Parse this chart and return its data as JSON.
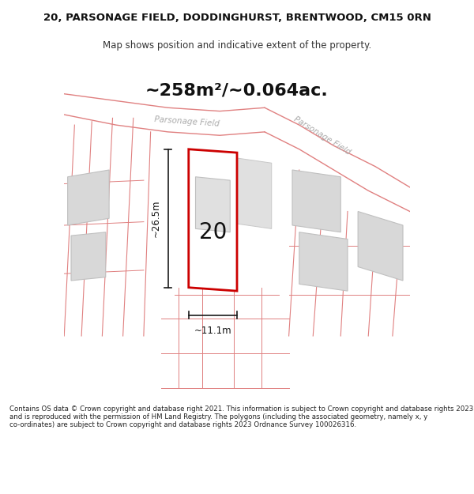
{
  "title_line1": "20, PARSONAGE FIELD, DODDINGHURST, BRENTWOOD, CM15 0RN",
  "title_line2": "Map shows position and indicative extent of the property.",
  "area_text": "~258m²/~0.064ac.",
  "label_number": "20",
  "dim_height": "~26.5m",
  "dim_width": "~11.1m",
  "street_label1": "Parsonage Field",
  "street_label2": "Parsonage Field",
  "footer_text": "Contains OS data © Crown copyright and database right 2021. This information is subject to Crown copyright and database rights 2023 and is reproduced with the permission of HM Land Registry. The polygons (including the associated geometry, namely x, y co-ordinates) are subject to Crown copyright and database rights 2023 Ordnance Survey 100026316.",
  "bg_color": "#ffffff",
  "map_bg": "#f5f5f5",
  "plot_outline_color": "#cc0000",
  "plot_fill_color": "#ffffff",
  "dim_line_color": "#1a1a1a",
  "road_line_color": "#e08080",
  "building_fill": "#d8d8d8",
  "building_line": "#c0c0c0",
  "street_text_color": "#aaaaaa",
  "footer_color": "#222222"
}
